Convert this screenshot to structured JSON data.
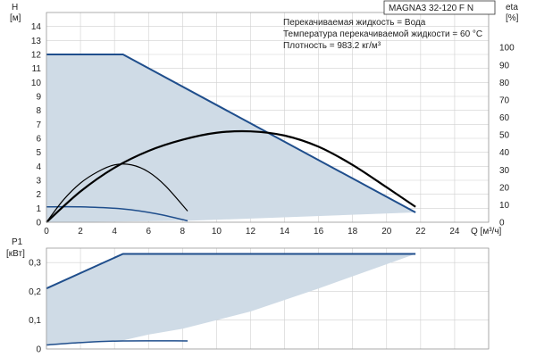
{
  "colors": {
    "envelope_fill": "#cfdbe6",
    "envelope_line": "#1f4e8c",
    "duty_line": "#000000",
    "grid": "#d0d0d0"
  },
  "chart_data": [
    {
      "type": "line",
      "title": "MAGNA3 32-120 F N",
      "info_lines": [
        "Перекачиваемая жидкость = Вода",
        "Температура перекачиваемой жидкости = 60 °C",
        "Плотность = 983.2 кг/м³"
      ],
      "xlabel": "Q [м³/ч]",
      "ylabel_line1": "H",
      "ylabel_line2": "[м]",
      "y2label_line1": "eta",
      "y2label_line2": "[%]",
      "xlim": [
        0,
        26
      ],
      "ylim": [
        0,
        15
      ],
      "y2lim": [
        0,
        120
      ],
      "x_ticks": [
        0,
        2,
        4,
        6,
        8,
        10,
        12,
        14,
        16,
        18,
        20,
        22,
        24
      ],
      "y_ticks": [
        0,
        1,
        2,
        3,
        4,
        5,
        6,
        7,
        8,
        9,
        10,
        11,
        12,
        13,
        14
      ],
      "y2_ticks": [
        0,
        10,
        20,
        30,
        40,
        50,
        60,
        70,
        80,
        90,
        100
      ],
      "grid": true,
      "series": [
        {
          "role": "envelope",
          "style": "fill",
          "x": [
            0,
            0,
            4.5,
            21.7,
            8.3,
            0
          ],
          "y": [
            0,
            12,
            12,
            0.7,
            0.1,
            0
          ]
        },
        {
          "role": "min-head-curve",
          "style": "blue",
          "x": [
            0,
            2,
            4.5,
            6.5,
            8.3
          ],
          "y": [
            1.1,
            1.1,
            0.95,
            0.6,
            0.1
          ]
        },
        {
          "role": "duty-head-curve",
          "style": "black-thick",
          "x": [
            0,
            2,
            4,
            6,
            8,
            10,
            12,
            14,
            16,
            18,
            20,
            21.7
          ],
          "y": [
            0,
            2.2,
            3.9,
            5.1,
            5.9,
            6.4,
            6.5,
            6.2,
            5.4,
            4.1,
            2.5,
            1.1
          ]
        },
        {
          "role": "efficiency-curve",
          "style": "black-thin",
          "x": [
            0,
            1,
            2,
            3,
            4,
            5,
            6,
            7,
            8.3
          ],
          "y": [
            0,
            1.6,
            2.8,
            3.6,
            4.1,
            4.1,
            3.6,
            2.6,
            0.8
          ]
        }
      ]
    },
    {
      "type": "area",
      "xlabel": "",
      "ylabel_line1": "P1",
      "ylabel_line2": "[кВт]",
      "xlim": [
        0,
        26
      ],
      "ylim": [
        0,
        0.35
      ],
      "y_ticks": [
        0,
        0.1,
        0.2,
        0.3
      ],
      "y_tick_labels": [
        "0",
        "0,1",
        "0,2",
        "0,3"
      ],
      "grid": true,
      "series": [
        {
          "role": "power-envelope",
          "style": "fill",
          "x": [
            0,
            0,
            4.5,
            21.7,
            16,
            12,
            8,
            6,
            4.5,
            0
          ],
          "y": [
            0.014,
            0.21,
            0.33,
            0.33,
            0.21,
            0.13,
            0.07,
            0.05,
            0.03,
            0.014
          ]
        },
        {
          "role": "max-power",
          "style": "blue",
          "x": [
            0,
            4.5,
            21.7
          ],
          "y": [
            0.21,
            0.33,
            0.33
          ]
        },
        {
          "role": "min-power",
          "style": "blue",
          "x": [
            0,
            2,
            4.5,
            8.3
          ],
          "y": [
            0.014,
            0.022,
            0.028,
            0.028
          ]
        }
      ]
    }
  ]
}
